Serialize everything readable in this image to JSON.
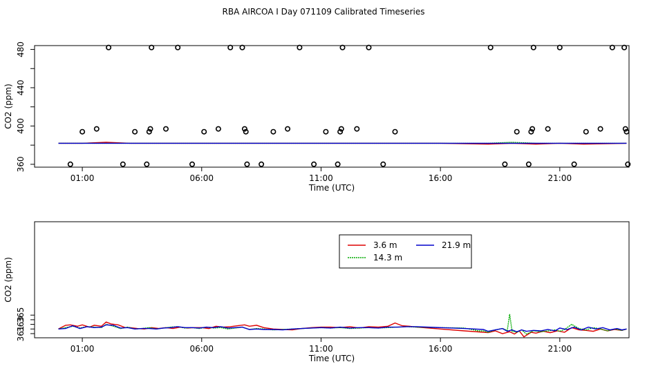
{
  "title": "RBA AIRCOA I  Day 071109  Calibrated Timeseries",
  "colors": {
    "s36": "#dd0000",
    "s143": "#00aa00",
    "s219": "#0000cc",
    "axis": "#000000"
  },
  "chart_data": [
    {
      "type": "scatter",
      "xlabel": "Time (UTC)",
      "ylabel": "CO2 (ppm)",
      "xlim": [
        -1.0,
        23.9
      ],
      "ylim": [
        357,
        484
      ],
      "xticks": [
        1,
        6,
        11,
        16,
        21
      ],
      "xtick_labels": [
        "01:00",
        "06:00",
        "11:00",
        "16:00",
        "21:00"
      ],
      "yticks": [
        360,
        380,
        400,
        420,
        440,
        460,
        480
      ],
      "ytick_labels": [
        "360",
        "",
        "400",
        "",
        "440",
        "",
        "480"
      ],
      "outliers": [
        {
          "x": 0.5,
          "y": 360
        },
        {
          "x": 1.0,
          "y": 394
        },
        {
          "x": 1.6,
          "y": 397
        },
        {
          "x": 2.1,
          "y": 482
        },
        {
          "x": 2.7,
          "y": 360
        },
        {
          "x": 3.2,
          "y": 394
        },
        {
          "x": 3.7,
          "y": 360
        },
        {
          "x": 3.8,
          "y": 394
        },
        {
          "x": 3.85,
          "y": 397
        },
        {
          "x": 3.9,
          "y": 482
        },
        {
          "x": 4.5,
          "y": 397
        },
        {
          "x": 5.0,
          "y": 482
        },
        {
          "x": 5.6,
          "y": 360
        },
        {
          "x": 6.1,
          "y": 394
        },
        {
          "x": 6.7,
          "y": 397
        },
        {
          "x": 7.2,
          "y": 482
        },
        {
          "x": 7.7,
          "y": 482
        },
        {
          "x": 7.8,
          "y": 397
        },
        {
          "x": 7.85,
          "y": 394
        },
        {
          "x": 7.9,
          "y": 360
        },
        {
          "x": 8.5,
          "y": 360
        },
        {
          "x": 9.0,
          "y": 394
        },
        {
          "x": 9.6,
          "y": 397
        },
        {
          "x": 10.1,
          "y": 482
        },
        {
          "x": 10.7,
          "y": 360
        },
        {
          "x": 11.2,
          "y": 394
        },
        {
          "x": 11.7,
          "y": 360
        },
        {
          "x": 11.8,
          "y": 394
        },
        {
          "x": 11.85,
          "y": 397
        },
        {
          "x": 11.9,
          "y": 482
        },
        {
          "x": 12.5,
          "y": 397
        },
        {
          "x": 13.0,
          "y": 482
        },
        {
          "x": 13.6,
          "y": 360
        },
        {
          "x": 14.1,
          "y": 394
        },
        {
          "x": 18.1,
          "y": 482
        },
        {
          "x": 18.7,
          "y": 360
        },
        {
          "x": 19.2,
          "y": 394
        },
        {
          "x": 19.7,
          "y": 360
        },
        {
          "x": 19.8,
          "y": 394
        },
        {
          "x": 19.85,
          "y": 397
        },
        {
          "x": 19.9,
          "y": 482
        },
        {
          "x": 20.5,
          "y": 397
        },
        {
          "x": 21.0,
          "y": 482
        },
        {
          "x": 21.6,
          "y": 360
        },
        {
          "x": 22.1,
          "y": 394
        },
        {
          "x": 22.7,
          "y": 397
        },
        {
          "x": 23.2,
          "y": 482
        },
        {
          "x": 23.7,
          "y": 482
        },
        {
          "x": 23.75,
          "y": 397
        },
        {
          "x": 23.8,
          "y": 394
        },
        {
          "x": 23.85,
          "y": 360
        }
      ],
      "series": [
        {
          "x": [
            0,
            1,
            2,
            3,
            4,
            6,
            8,
            10,
            12,
            14,
            16,
            18,
            19,
            20,
            21,
            22,
            23.8
          ],
          "y": [
            382,
            382,
            383,
            382,
            382,
            382,
            382,
            382,
            382,
            382,
            382,
            381,
            382,
            381,
            382,
            381,
            382
          ]
        },
        {
          "x": [
            0,
            1,
            2,
            3,
            4,
            6,
            8,
            10,
            12,
            14,
            16,
            18,
            19,
            20,
            21,
            22,
            23.8
          ],
          "y": [
            382,
            382,
            382,
            382,
            382,
            382,
            382,
            382,
            382,
            382,
            382,
            382,
            383,
            382,
            382,
            382,
            382
          ]
        },
        {
          "x": [
            0,
            1,
            2,
            3,
            4,
            6,
            8,
            10,
            12,
            14,
            16,
            18,
            19,
            20,
            21,
            22,
            23.8
          ],
          "y": [
            382,
            382,
            382,
            382,
            382,
            382,
            382,
            382,
            382,
            382,
            382,
            382,
            382,
            382,
            382,
            382,
            382
          ]
        }
      ]
    },
    {
      "type": "line",
      "xlabel": "Time (UTC)",
      "ylabel": "CO2 (ppm)",
      "xlim": [
        -1.0,
        23.9
      ],
      "ylim": [
        360.1,
        385.2
      ],
      "xticks": [
        1,
        6,
        11,
        16,
        21
      ],
      "xtick_labels": [
        "01:00",
        "06:00",
        "11:00",
        "16:00",
        "21:00"
      ],
      "yticks": [
        361,
        362,
        363,
        364,
        365
      ],
      "ytick_labels": [
        "361",
        "",
        "363",
        "",
        "365"
      ],
      "legend": "top-center",
      "series": [
        {
          "name": "3.6 m",
          "x": [
            0,
            0.3,
            0.5,
            0.8,
            1.0,
            1.3,
            1.5,
            1.8,
            2.0,
            2.2,
            2.5,
            2.8,
            3.0,
            3.3,
            3.6,
            3.9,
            4.2,
            4.5,
            4.8,
            5.1,
            5.4,
            5.7,
            6.0,
            6.3,
            6.6,
            6.9,
            7.2,
            7.5,
            7.8,
            8.0,
            8.3,
            8.6,
            9.0,
            9.4,
            9.8,
            10.2,
            10.6,
            11.0,
            11.4,
            11.8,
            12.2,
            12.6,
            13.0,
            13.4,
            13.8,
            14.1,
            14.4,
            14.7,
            15.0,
            16.0,
            17.0,
            17.8,
            18.0,
            18.3,
            18.6,
            18.9,
            19.1,
            19.3,
            19.5,
            19.8,
            20.0,
            20.3,
            20.6,
            20.9,
            21.2,
            21.5,
            21.8,
            22.1,
            22.4,
            22.7,
            23.0,
            23.3,
            23.6,
            23.8
          ],
          "y": [
            362.0,
            362.8,
            362.9,
            362.6,
            362.9,
            362.4,
            362.8,
            362.6,
            363.5,
            363.1,
            362.9,
            362.3,
            362.3,
            362.1,
            362.0,
            362.3,
            362.1,
            362.3,
            362.1,
            362.4,
            362.2,
            362.3,
            362.3,
            362.1,
            362.6,
            362.4,
            362.5,
            362.7,
            362.9,
            362.6,
            362.8,
            362.3,
            362.0,
            361.9,
            361.8,
            362.1,
            362.3,
            362.4,
            362.4,
            362.3,
            362.5,
            362.2,
            362.5,
            362.4,
            362.6,
            363.3,
            362.7,
            362.6,
            362.4,
            362.0,
            361.6,
            361.3,
            361.2,
            361.6,
            361.0,
            361.4,
            360.9,
            361.6,
            360.3,
            361.3,
            361.1,
            361.5,
            361.2,
            361.6,
            361.3,
            362.3,
            361.8,
            361.7,
            361.5,
            362.0,
            361.6,
            361.9,
            361.7,
            362.0
          ]
        },
        {
          "name": "14.3 m",
          "x": [
            0,
            0.3,
            0.6,
            0.9,
            1.2,
            1.5,
            1.8,
            2.0,
            2.3,
            2.6,
            2.9,
            3.2,
            3.5,
            3.8,
            4.1,
            4.4,
            4.7,
            5.0,
            5.3,
            5.6,
            5.9,
            6.2,
            6.5,
            6.8,
            7.1,
            7.4,
            7.7,
            8.0,
            8.3,
            8.6,
            9.0,
            9.4,
            9.8,
            10.2,
            10.6,
            11.0,
            11.4,
            11.8,
            12.2,
            12.6,
            13.0,
            13.4,
            13.8,
            14.2,
            14.6,
            15.0,
            16.0,
            17.0,
            17.6,
            17.8,
            18.0,
            18.3,
            18.6,
            18.8,
            18.9,
            19.0,
            19.2,
            19.4,
            19.6,
            19.9,
            20.2,
            20.5,
            20.8,
            21.0,
            21.2,
            21.5,
            21.8,
            22.1,
            22.4,
            22.7,
            23.0,
            23.3,
            23.6,
            23.8
          ],
          "y": [
            362.0,
            362.3,
            362.6,
            362.2,
            362.5,
            362.4,
            362.3,
            363.0,
            362.6,
            362.1,
            362.4,
            362.0,
            362.1,
            362.3,
            362.0,
            362.2,
            362.4,
            362.5,
            362.2,
            362.3,
            362.1,
            362.4,
            362.2,
            362.3,
            362.0,
            362.2,
            362.4,
            361.9,
            362.1,
            362.0,
            361.8,
            361.9,
            362.0,
            362.1,
            362.2,
            362.3,
            362.2,
            362.3,
            362.1,
            362.2,
            362.3,
            362.2,
            362.3,
            362.4,
            362.5,
            362.4,
            362.3,
            362.2,
            361.6,
            361.6,
            361.3,
            361.8,
            362.1,
            361.7,
            365.2,
            361.5,
            361.3,
            361.8,
            360.9,
            361.6,
            361.4,
            361.6,
            361.8,
            361.5,
            361.9,
            363.0,
            362.1,
            361.8,
            362.3,
            362.0,
            361.6,
            362.0,
            361.7,
            362.0
          ]
        },
        {
          "name": "21.9 m",
          "x": [
            0,
            0.3,
            0.6,
            0.9,
            1.2,
            1.5,
            1.8,
            2.0,
            2.3,
            2.6,
            2.9,
            3.2,
            3.5,
            3.8,
            4.1,
            4.4,
            4.7,
            5.0,
            5.3,
            5.6,
            5.9,
            6.2,
            6.5,
            6.8,
            7.1,
            7.4,
            7.7,
            8.0,
            8.3,
            8.6,
            9.0,
            9.4,
            9.8,
            10.2,
            10.6,
            11.0,
            11.4,
            11.8,
            12.2,
            12.6,
            13.0,
            13.4,
            13.8,
            14.2,
            14.6,
            15.0,
            16.0,
            17.0,
            17.8,
            18.0,
            18.3,
            18.6,
            18.8,
            19.0,
            19.2,
            19.4,
            19.6,
            19.9,
            20.2,
            20.5,
            20.8,
            21.0,
            21.3,
            21.6,
            21.9,
            22.2,
            22.5,
            22.8,
            23.1,
            23.4,
            23.6,
            23.8
          ],
          "y": [
            362.0,
            362.1,
            362.7,
            362.1,
            362.5,
            362.3,
            362.4,
            362.9,
            362.8,
            362.2,
            362.3,
            362.0,
            362.1,
            362.1,
            362.0,
            362.2,
            362.3,
            362.5,
            362.3,
            362.3,
            362.2,
            362.4,
            362.3,
            362.5,
            362.2,
            362.3,
            362.4,
            361.9,
            362.0,
            361.9,
            361.9,
            361.8,
            362.0,
            362.1,
            362.2,
            362.3,
            362.2,
            362.4,
            362.2,
            362.3,
            362.3,
            362.2,
            362.4,
            362.4,
            362.5,
            362.5,
            362.3,
            362.1,
            361.9,
            361.5,
            361.8,
            362.1,
            361.5,
            361.8,
            361.4,
            361.8,
            361.5,
            361.7,
            361.6,
            361.9,
            361.6,
            362.2,
            361.9,
            362.4,
            361.8,
            362.4,
            362.0,
            362.3,
            361.8,
            362.1,
            361.8,
            362.0
          ]
        }
      ]
    }
  ]
}
